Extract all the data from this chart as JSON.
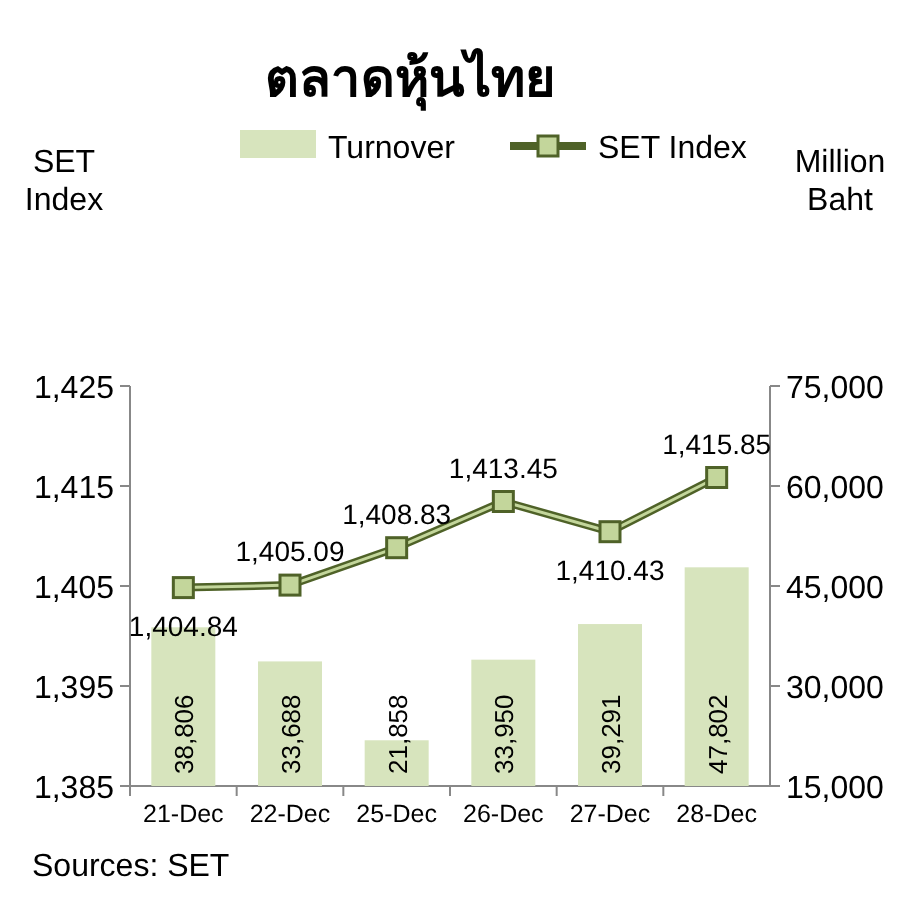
{
  "chart_data": {
    "type": "bar",
    "title": "ตลาดหุ้นไทย",
    "ylabel": "SET Index",
    "y2label": "Million Baht",
    "categories": [
      "21-Dec",
      "22-Dec",
      "25-Dec",
      "26-Dec",
      "27-Dec",
      "28-Dec"
    ],
    "series": [
      {
        "name": "Turnover",
        "axis": "y2",
        "color": "#d7e4bd",
        "values": [
          38806,
          33688,
          21858,
          33950,
          39291,
          47802
        ],
        "value_labels": [
          "38,806",
          "33,688",
          "21,858",
          "33,950",
          "39,291",
          "47,802"
        ]
      },
      {
        "name": "SET Index",
        "type": "line",
        "color": "#4f6228",
        "marker": "square",
        "values": [
          1404.84,
          1405.09,
          1408.83,
          1413.45,
          1410.43,
          1415.85
        ],
        "value_labels": [
          "1,404.84",
          "1,405.09",
          "1,408.83",
          "1,413.45",
          "1,410.43",
          "1,415.85"
        ]
      }
    ],
    "ylim": [
      1385,
      1425
    ],
    "yticks": [
      {
        "value": 1385,
        "label": "1,385"
      },
      {
        "value": 1395,
        "label": "1,395"
      },
      {
        "value": 1405,
        "label": "1,405"
      },
      {
        "value": 1415,
        "label": "1,415"
      },
      {
        "value": 1425,
        "label": "1,425"
      }
    ],
    "y2lim": [
      15000,
      75000
    ],
    "y2ticks": [
      {
        "value": 15000,
        "label": "15,000"
      },
      {
        "value": 30000,
        "label": "30,000"
      },
      {
        "value": 45000,
        "label": "45,000"
      },
      {
        "value": 60000,
        "label": "60,000"
      },
      {
        "value": 75000,
        "label": "75,000"
      }
    ],
    "legend": "top",
    "grid": false,
    "annotations": [
      "Sources: SET"
    ]
  }
}
